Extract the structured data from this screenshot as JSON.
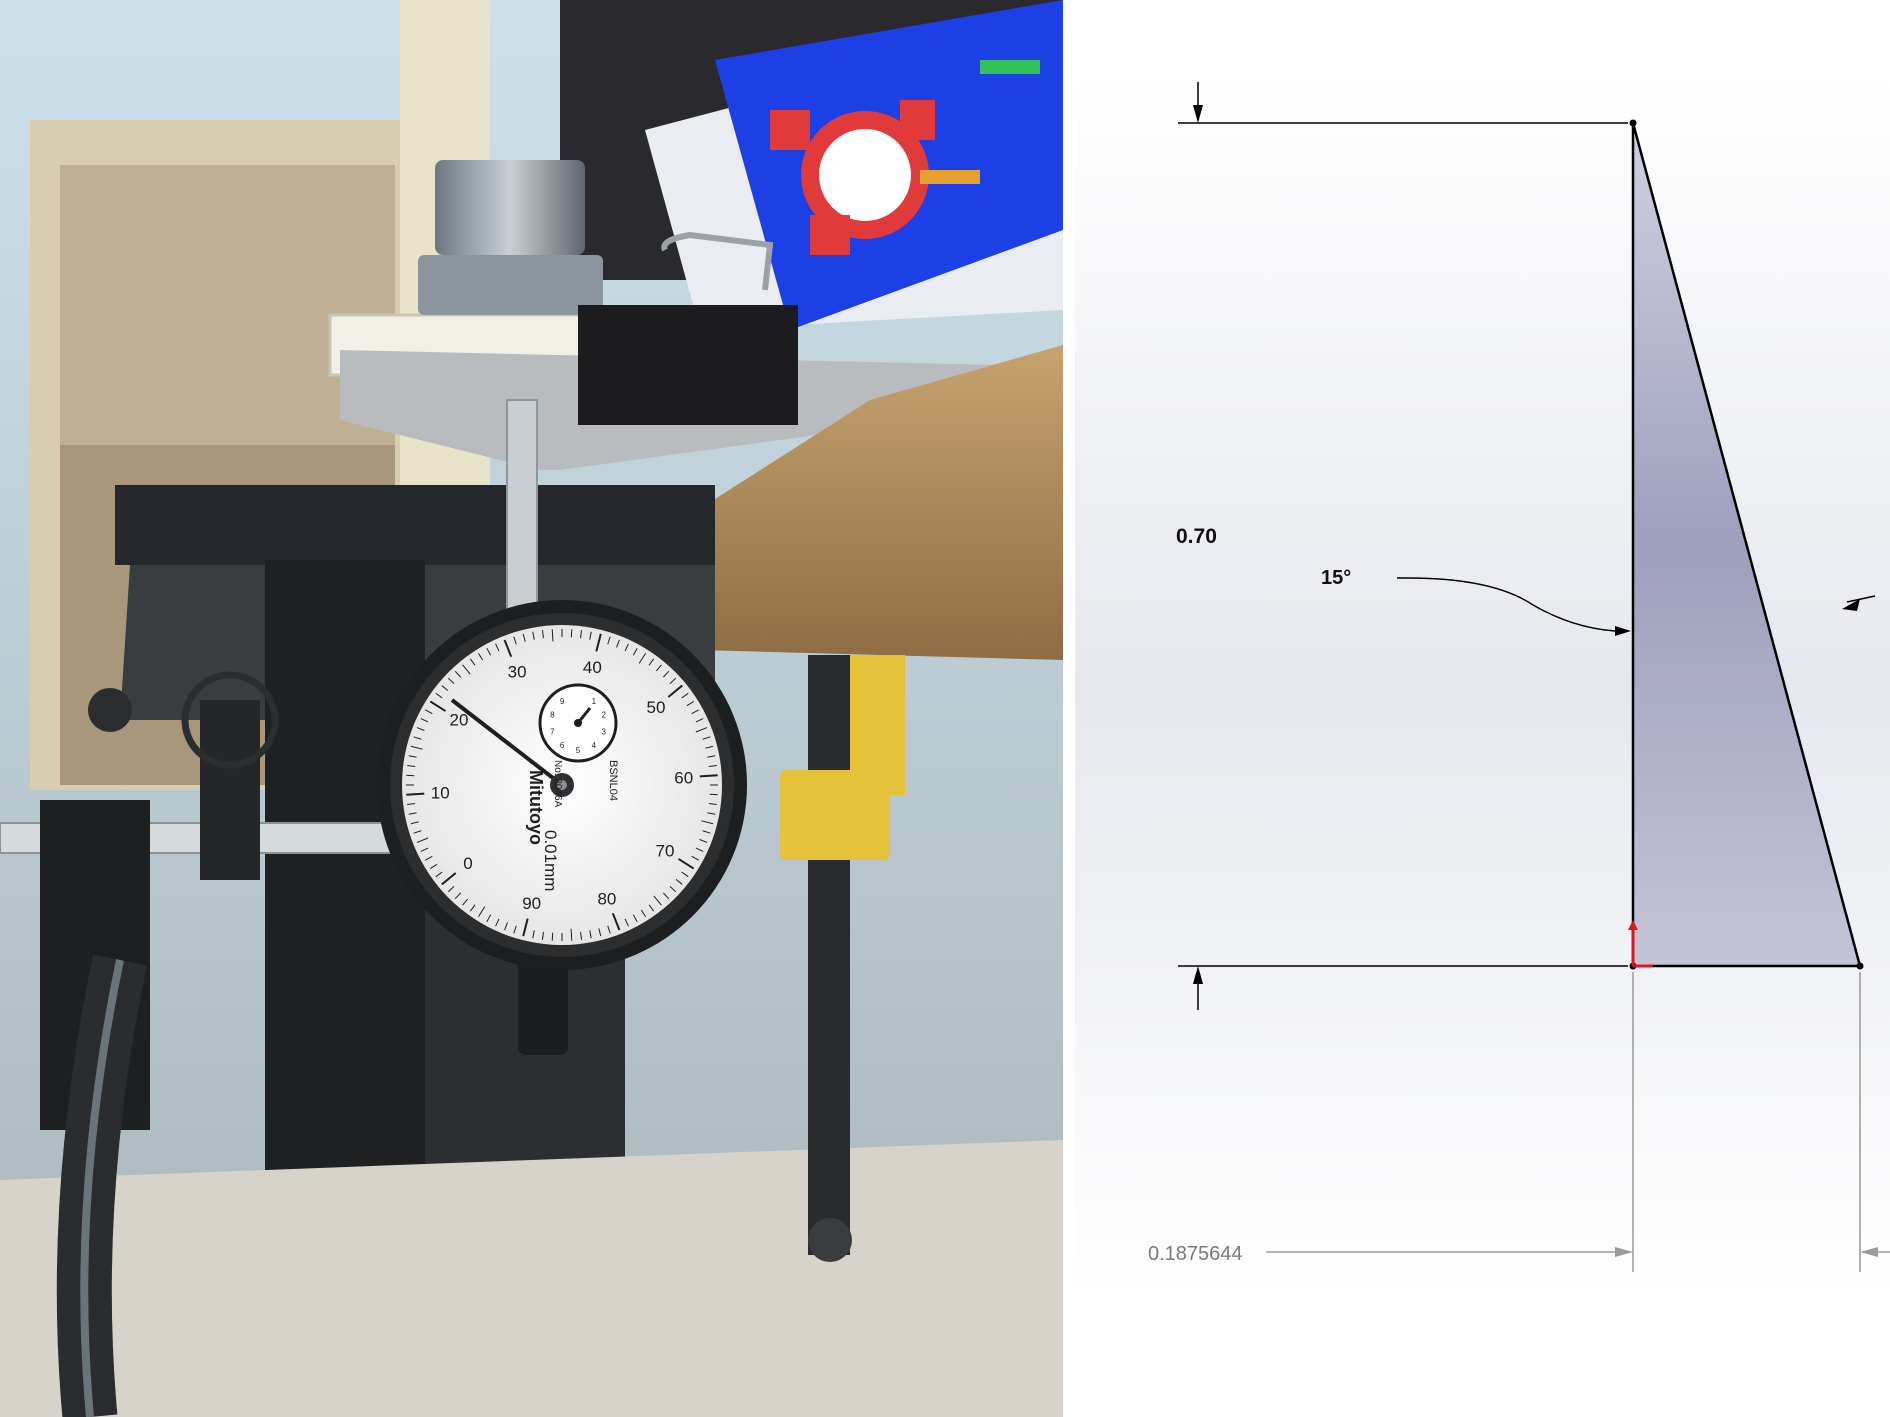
{
  "photo": {
    "gauge": {
      "brand": "Mitutoyo",
      "model": "No. 2046A",
      "resolution": "0.01mm",
      "code": "BSNL04",
      "outer_ticks": [
        "0",
        "10",
        "20",
        "30",
        "40",
        "50",
        "60",
        "70",
        "80",
        "90"
      ],
      "inner_ticks": [
        "1",
        "2",
        "3",
        "4",
        "5",
        "6",
        "7",
        "8",
        "9"
      ]
    }
  },
  "drawing": {
    "height_label": "0.70",
    "angle_label": "15°",
    "width_label": "0.1875644"
  },
  "colors": {
    "triangle_fill_top": "#cfd0e0",
    "triangle_fill_bottom": "#9597b8",
    "monitor_blue": "#1c3fe6",
    "part_red": "#e03a3a",
    "clamp_yellow": "#e6c23a"
  }
}
